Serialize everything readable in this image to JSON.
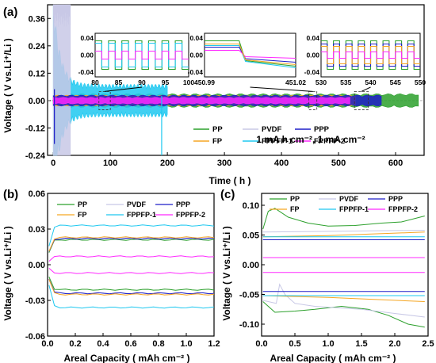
{
  "colors": {
    "PP": "#2ca02c",
    "PVDF": "#c8c8e6",
    "PPP": "#1f1fc8",
    "FP": "#f5a623",
    "FPPFP-1": "#1ec8f0",
    "FPPFP-2": "#ff28ff"
  },
  "legend_labels": [
    "PP",
    "PVDF",
    "PPP",
    "FP",
    "FPPFP-1",
    "FPPFP-2"
  ],
  "chart_data": [
    {
      "panel": "(a)",
      "type": "line",
      "xlabel": "Time ( h )",
      "ylabel": "Voltage ( V vs.Li⁺/Li )",
      "xlim": [
        -10,
        650
      ],
      "ylim": [
        -0.24,
        0.42
      ],
      "xticks": [
        "0",
        "100",
        "200",
        "300",
        "400",
        "500",
        "600"
      ],
      "xtick_values": [
        0,
        100,
        200,
        300,
        400,
        500,
        600
      ],
      "yticks": [
        "0.36",
        "0.24",
        "0.12",
        "0.00",
        "-0.12",
        "-0.24"
      ],
      "ytick_values": [
        0.36,
        0.24,
        0.12,
        0.0,
        -0.12,
        -0.24
      ],
      "annotation": "1 mA h cm⁻², 1 mA cm⁻²",
      "legend_position": "bottom-right",
      "envelopes": [
        {
          "name": "PP",
          "t_end": 640,
          "amplitude": 0.025
        },
        {
          "name": "FPPFP-1",
          "t_end": 200,
          "amplitude_start": 0.38,
          "amplitude": 0.06
        },
        {
          "name": "FPPFP-2",
          "t_end": 520,
          "amplitude": 0.012
        },
        {
          "name": "FP",
          "t_end": 530,
          "amplitude": 0.02
        },
        {
          "name": "PPP",
          "t_end": 575,
          "amplitude": 0.02
        },
        {
          "name": "PVDF",
          "t_end": 30,
          "amplitude": 0.4
        }
      ],
      "insets": [
        {
          "xlim": [
            80,
            100
          ],
          "ylim": [
            -0.04,
            0.04
          ],
          "xticks": [
            "80",
            "85",
            "90",
            "95",
            "100"
          ],
          "yticks": [
            "0.04",
            "0.00",
            "-0.04"
          ]
        },
        {
          "xlim": [
            450.99,
            451.02
          ],
          "ylim": [
            -0.04,
            0.04
          ],
          "xticks": [
            "450.99",
            "451.02"
          ],
          "yticks": [
            "0.04",
            "0.00",
            "-0.04"
          ]
        },
        {
          "xlim": [
            530,
            550
          ],
          "ylim": [
            -0.04,
            0.04
          ],
          "xticks": [
            "530",
            "535",
            "540",
            "545",
            "550"
          ],
          "yticks": [
            "0.04",
            "0.00",
            "-0.04"
          ]
        }
      ]
    },
    {
      "panel": "(b)",
      "type": "line",
      "xlabel": "Areal Capacity ( mAh cm⁻² )",
      "ylabel": "Voltage ( V vs.Li⁺/Li )",
      "xlim": [
        0,
        1.2
      ],
      "ylim": [
        -0.06,
        0.06
      ],
      "xticks": [
        "0.0",
        "0.2",
        "0.4",
        "0.6",
        "0.8",
        "1.0",
        "1.2"
      ],
      "xtick_values": [
        0,
        0.2,
        0.4,
        0.6,
        0.8,
        1.0,
        1.2
      ],
      "yticks": [
        "0.06",
        "0.03",
        "0.00",
        "-0.03",
        "-0.06"
      ],
      "ytick_values": [
        0.06,
        0.03,
        0.0,
        -0.03,
        -0.06
      ],
      "legend_position": "top",
      "series": [
        {
          "name": "PP",
          "charge": 0.021,
          "discharge": -0.021
        },
        {
          "name": "PVDF",
          "charge": 0.022,
          "discharge": -0.024
        },
        {
          "name": "PPP",
          "charge": 0.022,
          "discharge": -0.024
        },
        {
          "name": "FP",
          "charge": 0.023,
          "discharge": -0.025
        },
        {
          "name": "FPPFP-1",
          "charge": 0.033,
          "discharge": -0.036
        },
        {
          "name": "FPPFP-2",
          "charge": 0.007,
          "discharge": -0.007
        }
      ]
    },
    {
      "panel": "(c)",
      "type": "line",
      "xlabel": "Areal Capacity ( mAh cm⁻² )",
      "ylabel": "Voltage ( V vs.Li⁺/Li )",
      "xlim": [
        0,
        2.5
      ],
      "ylim": [
        -0.12,
        0.12
      ],
      "xticks": [
        "0.0",
        "0.5",
        "1.0",
        "1.5",
        "2.0",
        "2.5"
      ],
      "xtick_values": [
        0,
        0.5,
        1.0,
        1.5,
        2.0,
        2.5
      ],
      "yticks": [
        "0.10",
        "0.05",
        "0.00",
        "-0.05",
        "-0.10"
      ],
      "ytick_values": [
        0.1,
        0.05,
        0.0,
        -0.05,
        -0.1
      ],
      "legend_position": "top",
      "series": [
        {
          "name": "PP",
          "charge": [
            [
              0.02,
              0.06
            ],
            [
              0.1,
              0.09
            ],
            [
              0.2,
              0.095
            ],
            [
              0.4,
              0.08
            ],
            [
              0.7,
              0.07
            ],
            [
              1.0,
              0.065
            ],
            [
              1.4,
              0.066
            ],
            [
              1.8,
              0.07
            ],
            [
              2.1,
              0.072
            ],
            [
              2.45,
              0.082
            ]
          ],
          "discharge": [
            [
              0.02,
              -0.062
            ],
            [
              0.2,
              -0.08
            ],
            [
              0.5,
              -0.078
            ],
            [
              0.8,
              -0.075
            ],
            [
              1.2,
              -0.07
            ],
            [
              1.6,
              -0.075
            ],
            [
              1.9,
              -0.085
            ],
            [
              2.2,
              -0.1
            ],
            [
              2.45,
              -0.105
            ]
          ]
        },
        {
          "name": "PVDF",
          "charge": [
            [
              0.02,
              0.055
            ],
            [
              2.45,
              0.058
            ]
          ],
          "discharge": [
            [
              0.02,
              -0.06
            ],
            [
              0.22,
              -0.065
            ],
            [
              0.27,
              -0.033
            ],
            [
              0.35,
              -0.05
            ],
            [
              0.5,
              -0.065
            ],
            [
              0.8,
              -0.07
            ],
            [
              1.5,
              -0.075
            ],
            [
              2.0,
              -0.082
            ],
            [
              2.45,
              -0.088
            ]
          ]
        },
        {
          "name": "PPP",
          "charge": [
            [
              0.02,
              0.042
            ],
            [
              2.45,
              0.042
            ]
          ],
          "discharge": [
            [
              0.02,
              -0.045
            ],
            [
              2.45,
              -0.045
            ]
          ]
        },
        {
          "name": "FP",
          "charge": [
            [
              0.02,
              0.047
            ],
            [
              1.0,
              0.049
            ],
            [
              2.45,
              0.055
            ]
          ],
          "discharge": [
            [
              0.02,
              -0.052
            ],
            [
              1.0,
              -0.055
            ],
            [
              2.45,
              -0.062
            ]
          ]
        },
        {
          "name": "FPPFP-1",
          "charge": [
            [
              0.02,
              0.047
            ],
            [
              2.45,
              0.047
            ]
          ],
          "discharge": [
            [
              0.02,
              -0.052
            ],
            [
              2.45,
              -0.052
            ]
          ]
        },
        {
          "name": "FPPFP-2",
          "charge": [
            [
              0.02,
              0.012
            ],
            [
              2.45,
              0.012
            ]
          ],
          "discharge": [
            [
              0.02,
              -0.013
            ],
            [
              2.45,
              -0.013
            ]
          ]
        }
      ]
    }
  ]
}
